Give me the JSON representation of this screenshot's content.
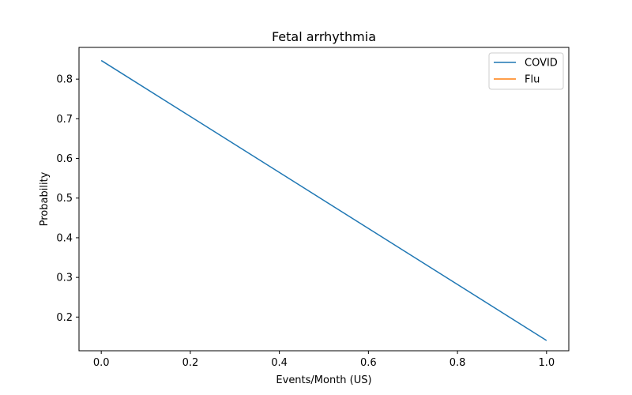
{
  "chart_data": {
    "type": "line",
    "title": "Fetal arrhythmia",
    "xlabel": "Events/Month (US)",
    "ylabel": "Probability",
    "xlim": [
      -0.05,
      1.05
    ],
    "ylim": [
      0.115,
      0.88
    ],
    "xticks": [
      0.0,
      0.2,
      0.4,
      0.6,
      0.8,
      1.0
    ],
    "xtick_labels": [
      "0.0",
      "0.2",
      "0.4",
      "0.6",
      "0.8",
      "1.0"
    ],
    "yticks": [
      0.2,
      0.3,
      0.4,
      0.5,
      0.6,
      0.7,
      0.8
    ],
    "ytick_labels": [
      "0.2",
      "0.3",
      "0.4",
      "0.5",
      "0.6",
      "0.7",
      "0.8"
    ],
    "grid": false,
    "legend_position": "top-right",
    "series": [
      {
        "name": "COVID",
        "color": "#1f77b4",
        "x": [
          0.0,
          1.0
        ],
        "y": [
          0.847,
          0.141
        ]
      },
      {
        "name": "Flu",
        "color": "#ff7f0e",
        "x": [],
        "y": []
      }
    ]
  }
}
